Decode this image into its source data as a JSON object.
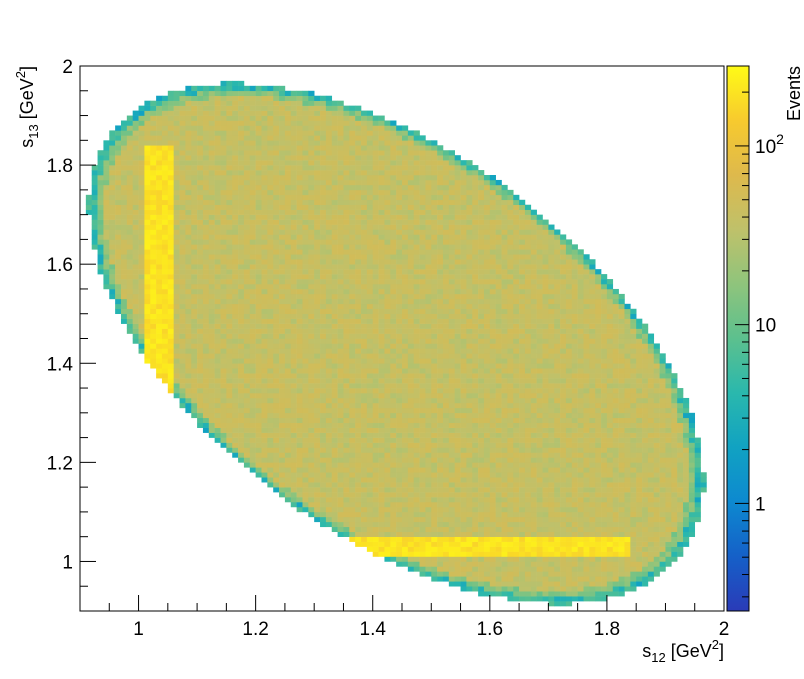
{
  "chart_data": {
    "type": "heatmap",
    "title": "",
    "xlabel": {
      "base": "s",
      "sub": "12",
      "unit_pre": " [GeV",
      "sup": "2",
      "unit_post": "]"
    },
    "ylabel": {
      "base": "s",
      "sub": "13",
      "unit_pre": " [GeV",
      "sup": "2",
      "unit_post": "]"
    },
    "zlabel": "Events",
    "xlim": [
      0.9,
      2.0
    ],
    "ylim": [
      0.9,
      2.0
    ],
    "zlim": [
      0.25,
      280
    ],
    "z_log_scale": true,
    "x_ticks": [
      "1",
      "1.2",
      "1.4",
      "1.6",
      "1.8",
      "2"
    ],
    "x_tick_values": [
      1.0,
      1.2,
      1.4,
      1.6,
      1.8,
      2.0
    ],
    "y_ticks": [
      "1",
      "1.2",
      "1.4",
      "1.6",
      "1.8",
      "2"
    ],
    "y_tick_values": [
      1.0,
      1.2,
      1.4,
      1.6,
      1.8,
      2.0
    ],
    "z_ticks": [
      {
        "value": 1,
        "base": "1",
        "exp": ""
      },
      {
        "value": 10,
        "base": "10",
        "exp": ""
      },
      {
        "value": 100,
        "base": "10",
        "exp": "2"
      }
    ],
    "bins": {
      "nx": 110,
      "ny": 110
    },
    "ellipse": {
      "center": [
        1.44,
        1.44
      ],
      "semi_major": 0.65,
      "semi_minor": 0.36,
      "angle_deg": -45
    },
    "background_events": 40,
    "edge_events": [
      2,
      8
    ],
    "resonance_bands": [
      {
        "axis": "x",
        "center": 1.035,
        "width": 0.025,
        "y_range": [
          1.33,
          1.84
        ],
        "events": 200
      },
      {
        "axis": "y",
        "center": 1.035,
        "width": 0.02,
        "x_range": [
          1.36,
          1.84
        ],
        "events": 200
      }
    ],
    "colormap": [
      "#2a3bb8",
      "#1560c8",
      "#0d89d0",
      "#11a2c2",
      "#2ab8ad",
      "#5cc08e",
      "#8fc47c",
      "#bfc16a",
      "#deb94c",
      "#f7ca2e",
      "#fffb16"
    ],
    "grid": false,
    "legend": "colorbar-right"
  }
}
